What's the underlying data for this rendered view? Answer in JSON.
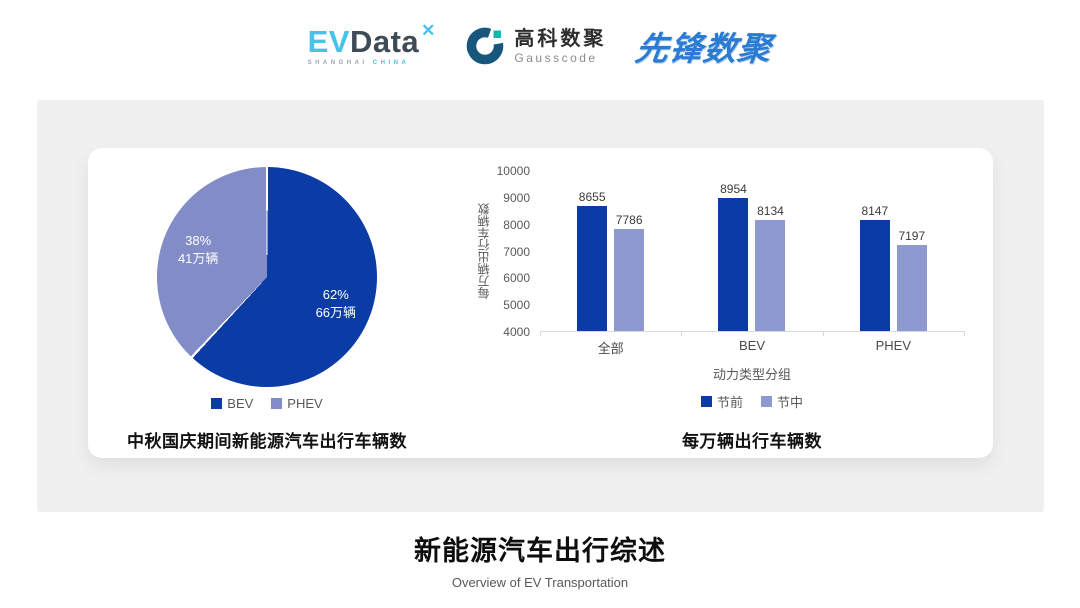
{
  "header": {
    "evdata": {
      "ev": "EV",
      "data": "Data",
      "sub_left": "SHANGHAI",
      "sub_right": "CHINA"
    },
    "gausscode": {
      "cn": "高科数聚",
      "en": "Gausscode"
    },
    "xianfeng": "先锋数聚"
  },
  "colors": {
    "primary_dark_blue": "#0B3CA6",
    "light_periwinkle": "#8F99D1",
    "panel_gray": "#F0F0F1",
    "axis_line": "#D9D9D9",
    "text_gray": "#595959"
  },
  "chart_data": [
    {
      "type": "pie",
      "title": "中秋国庆期间新能源汽车出行车辆数",
      "start_angle_deg": 0,
      "slices": [
        {
          "label": "BEV",
          "percent": 62,
          "value_label": "66万辆",
          "color": "#0B3CA6"
        },
        {
          "label": "PHEV",
          "percent": 38,
          "value_label": "41万辆",
          "color": "#828CC7"
        }
      ],
      "legend_position": "bottom"
    },
    {
      "type": "bar",
      "title": "每万辆出行车辆数",
      "categories": [
        "全部",
        "BEV",
        "PHEV"
      ],
      "series": [
        {
          "name": "节前",
          "color": "#0B3CA6",
          "values": [
            8655,
            8954,
            8147
          ]
        },
        {
          "name": "节中",
          "color": "#8F99D1",
          "values": [
            7786,
            8134,
            7197
          ]
        }
      ],
      "xlabel": "动力类型分组",
      "ylabel": "每万辆出行车辆数",
      "ylim": [
        4000,
        10000
      ],
      "yticks": [
        4000,
        5000,
        6000,
        7000,
        8000,
        9000,
        10000
      ],
      "grid": false,
      "legend_position": "bottom"
    }
  ],
  "footer": {
    "title": "新能源汽车出行综述",
    "subtitle": "Overview of EV Transportation"
  }
}
